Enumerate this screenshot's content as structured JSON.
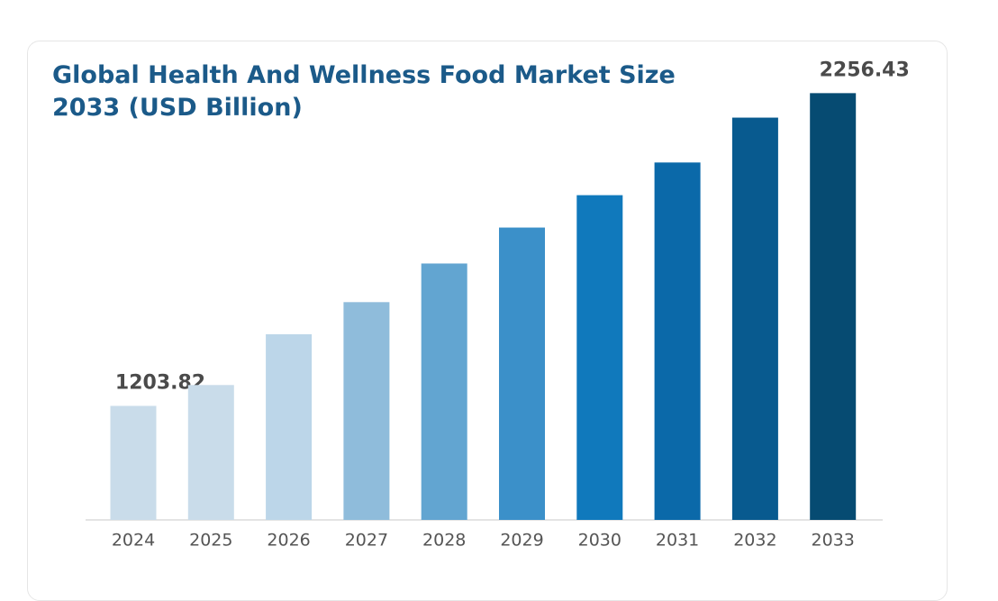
{
  "chart_data": {
    "type": "bar",
    "title": "Global Health And Wellness Food Market Size 2033 (USD Billion)",
    "categories": [
      "2024",
      "2025",
      "2026",
      "2027",
      "2028",
      "2029",
      "2030",
      "2031",
      "2032",
      "2033"
    ],
    "values": [
      1203.82,
      1274,
      1445,
      1553,
      1683,
      1804,
      1913,
      2023,
      2174,
      2256.43
    ],
    "colors": [
      "#c9dcea",
      "#c9dcea",
      "#bcd6e9",
      "#8fbcdb",
      "#62a5d1",
      "#3b90c9",
      "#1079bc",
      "#0b69a9",
      "#085a8f",
      "#064b72"
    ],
    "ylim": [
      820,
      2300
    ]
  }
}
